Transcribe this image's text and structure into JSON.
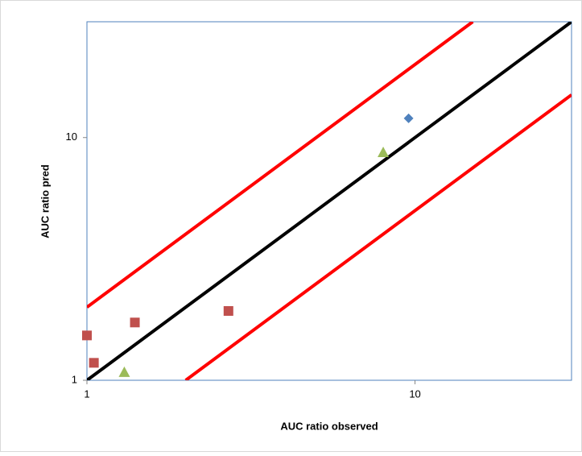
{
  "chart_data": {
    "type": "scatter",
    "xlabel": "AUC ratio observed",
    "ylabel": "AUC ratio pred",
    "xscale": "log",
    "yscale": "log",
    "xlim": [
      1,
      30
    ],
    "ylim": [
      1,
      30
    ],
    "xticks": [
      1,
      10
    ],
    "yticks": [
      1,
      10
    ],
    "series": [
      {
        "color": "#c0504d",
        "marker": "square",
        "x": [
          1.0,
          1.05,
          1.4,
          2.7
        ],
        "values": [
          1.53,
          1.18,
          1.73,
          1.93
        ]
      },
      {
        "color": "#9bbb59",
        "marker": "triangle",
        "x": [
          1.3,
          8.0
        ],
        "values": [
          1.08,
          8.7
        ]
      },
      {
        "color": "#4f81bd",
        "marker": "diamond",
        "x": [
          9.56
        ],
        "values": [
          12.0
        ]
      }
    ],
    "lines": [
      {
        "color": "#000000",
        "x": [
          1,
          30
        ],
        "values": [
          1,
          30
        ]
      },
      {
        "color": "#ff0000",
        "x": [
          1,
          15
        ],
        "values": [
          2,
          30
        ]
      },
      {
        "color": "#ff0000",
        "x": [
          2,
          30
        ],
        "values": [
          1,
          15
        ]
      }
    ]
  }
}
